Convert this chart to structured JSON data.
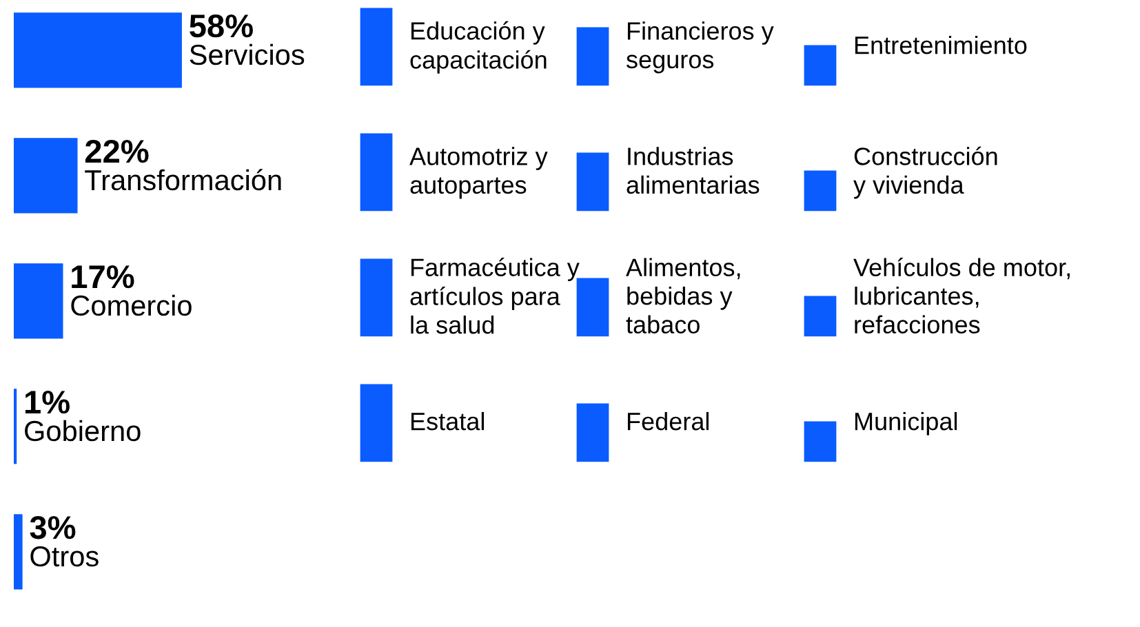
{
  "chart_data": {
    "type": "bar",
    "orientation": "horizontal",
    "categories": [
      "Servicios",
      "Transformación",
      "Comercio",
      "Gobierno",
      "Otros"
    ],
    "values": [
      58,
      22,
      17,
      1,
      3
    ],
    "value_labels": [
      "58%",
      "22%",
      "17%",
      "1%",
      "3%"
    ],
    "color": "#0a5cff",
    "annotations": [
      "Educación y\ncapacitación",
      "Financieros y\nseguros",
      "Entretenimiento",
      "Automotriz y\nautopartes",
      "Industrias\nalimentarias",
      "Construcción\ny vivienda",
      "Farmacéutica y\nartículos para\nla salud",
      "Alimentos,\nbebidas y\ntabaco",
      "Vehículos de motor,\nlubricantes,\nrefacciones",
      "Estatal",
      "Federal",
      "Municipal"
    ]
  }
}
